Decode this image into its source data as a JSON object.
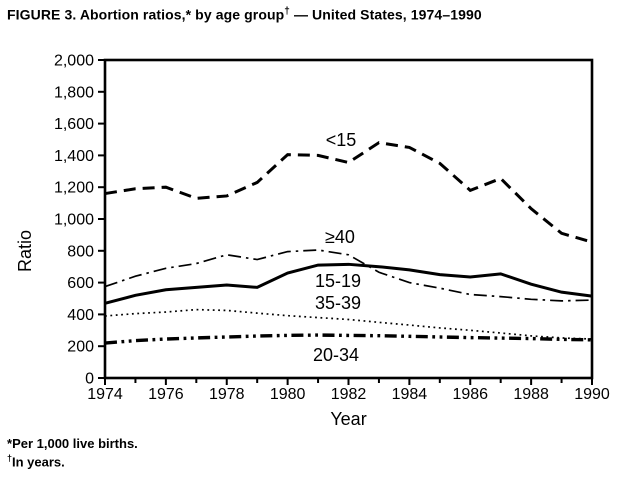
{
  "title": {
    "main": "FIGURE 3. Abortion ratios,* by age group",
    "sup": "†",
    "rest": " — United States, 1974–1990"
  },
  "footnotes": [
    {
      "marker": "*",
      "text": "Per 1,000 live births."
    },
    {
      "marker": "†",
      "text": "In years."
    }
  ],
  "colors": {
    "ink": "#000000",
    "background": "#ffffff"
  },
  "chart_data": {
    "type": "line",
    "title": "FIGURE 3. Abortion ratios, by age group — United States, 1974–1990",
    "xlabel": "Year",
    "ylabel": "Ratio",
    "grid": false,
    "legend": "inline-labels",
    "xlim": [
      1974,
      1990
    ],
    "ylim": [
      0,
      2000
    ],
    "x": [
      1974,
      1975,
      1976,
      1977,
      1978,
      1979,
      1980,
      1981,
      1982,
      1983,
      1984,
      1985,
      1986,
      1987,
      1988,
      1989,
      1990
    ],
    "x_major_ticks": [
      1974,
      1976,
      1978,
      1980,
      1982,
      1984,
      1986,
      1988,
      1990
    ],
    "x_tick_labels": [
      "1974",
      "1976",
      "1978",
      "1980",
      "1982",
      "1984",
      "1986",
      "1988",
      "1990"
    ],
    "y_ticks": [
      0,
      200,
      400,
      600,
      800,
      1000,
      1200,
      1400,
      1600,
      1800,
      2000
    ],
    "y_tick_labels": [
      "0",
      "200",
      "400",
      "600",
      "800",
      "1,000",
      "1,200",
      "1,400",
      "1,600",
      "1,800",
      "2,000"
    ],
    "series": [
      {
        "name": "<15",
        "dash": "dashed",
        "width": 3,
        "values": [
          1160,
          1190,
          1200,
          1130,
          1145,
          1230,
          1405,
          1400,
          1355,
          1480,
          1450,
          1350,
          1180,
          1255,
          1065,
          910,
          855
        ],
        "label": "<15",
        "label_x": 341,
        "label_y": 146
      },
      {
        "name": ">=40",
        "dash": "dashdot",
        "width": 1.7,
        "values": [
          575,
          640,
          690,
          720,
          775,
          745,
          795,
          805,
          775,
          665,
          600,
          565,
          525,
          512,
          495,
          485,
          490
        ],
        "label": "≥40",
        "label_x": 340,
        "label_y": 243
      },
      {
        "name": "15-19",
        "dash": "solid",
        "width": 3,
        "values": [
          470,
          520,
          555,
          570,
          585,
          570,
          660,
          710,
          715,
          700,
          680,
          650,
          635,
          655,
          590,
          540,
          515
        ],
        "label": "15-19",
        "label_x": 338,
        "label_y": 287
      },
      {
        "name": "35-39",
        "dash": "dotted",
        "width": 1.7,
        "values": [
          390,
          405,
          415,
          430,
          425,
          408,
          392,
          380,
          368,
          350,
          333,
          315,
          300,
          283,
          265,
          252,
          245
        ],
        "label": "35-39",
        "label_x": 338,
        "label_y": 309
      },
      {
        "name": "20-34",
        "dash": "dashdotdot",
        "width": 3.4,
        "values": [
          220,
          235,
          245,
          252,
          258,
          264,
          268,
          270,
          268,
          266,
          262,
          258,
          254,
          251,
          248,
          243,
          240
        ],
        "label": "20-34",
        "label_x": 336,
        "label_y": 361
      }
    ]
  }
}
